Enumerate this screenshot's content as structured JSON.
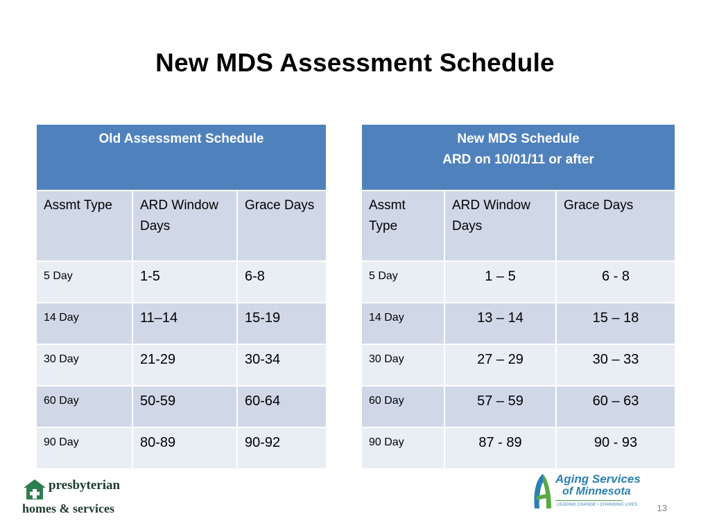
{
  "title": "New MDS Assessment Schedule",
  "old_table": {
    "header": "Old Assessment Schedule",
    "columns": [
      "Assmt Type",
      "ARD Window Days",
      "Grace Days"
    ],
    "rows": [
      {
        "type": "5 Day",
        "window": "1-5",
        "grace": "6-8"
      },
      {
        "type": "14 Day",
        "window": "11–14",
        "grace": "15-19"
      },
      {
        "type": "30 Day",
        "window": "21-29",
        "grace": "30-34"
      },
      {
        "type": "60 Day",
        "window": "50-59",
        "grace": "60-64"
      },
      {
        "type": "90 Day",
        "window": "80-89",
        "grace": "90-92"
      }
    ]
  },
  "new_table": {
    "header_line1": "New MDS Schedule",
    "header_line2": "ARD on 10/01/11 or after",
    "columns": [
      "Assmt Type",
      "ARD Window Days",
      "Grace Days"
    ],
    "rows": [
      {
        "type": "5 Day",
        "window": "1 – 5",
        "grace": "6 - 8"
      },
      {
        "type": "14 Day",
        "window": "13 – 14",
        "grace": "15 – 18"
      },
      {
        "type": "30 Day",
        "window": "27 – 29",
        "grace": "30 – 33"
      },
      {
        "type": "60 Day",
        "window": "57 – 59",
        "grace": "60 – 63"
      },
      {
        "type": "90 Day",
        "window": "87 - 89",
        "grace": "90 - 93"
      }
    ]
  },
  "logo_left": {
    "line1": "presbyterian",
    "line2": "homes & services"
  },
  "logo_right": {
    "line1": "Aging Services",
    "line2": "of Minnesota",
    "tagline": "LEADING CHANGE • CHANGING LIVES"
  },
  "page_number": "13",
  "colors": {
    "header_blue": "#4f81bd",
    "band_dark": "#d0d8e8",
    "band_light": "#e9edf4"
  }
}
